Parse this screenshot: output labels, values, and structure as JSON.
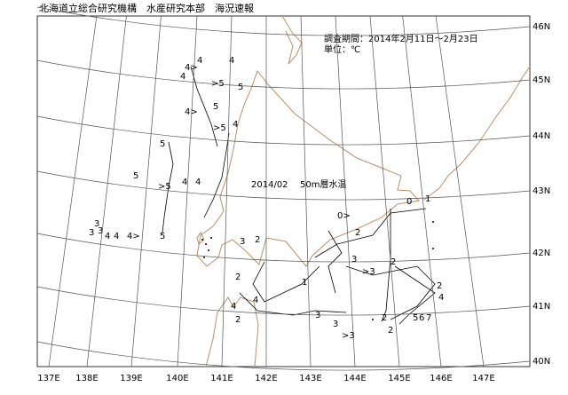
{
  "header": {
    "title": "北海道立総合研究機構　水産研究本部　海況速報",
    "period": "調査期間：2014年2月11日～2月23日",
    "unit": "単位：℃"
  },
  "map_label": {
    "date": "2014/02",
    "layer": "50m層水温"
  },
  "lon_labels": [
    "137E",
    "138E",
    "139E",
    "140E",
    "141E",
    "142E",
    "143E",
    "144E",
    "145E",
    "146E",
    "147E"
  ],
  "lat_labels": [
    "46N",
    "45N",
    "44N",
    "43N",
    "42N",
    "41N",
    "40N"
  ],
  "contour_labels": [
    "4>",
    "4",
    "4",
    "4",
    ">5",
    "5",
    "4>",
    "5",
    ">5",
    "4",
    "5",
    "5",
    ">5",
    "4",
    "4",
    "3",
    "3",
    "3",
    "4",
    "4",
    "4>",
    "5",
    "3",
    "2",
    "0",
    "0>",
    "1",
    "2",
    "3",
    ">3",
    "2",
    "2",
    "1",
    "3",
    "3",
    "2",
    "4",
    "2",
    "4",
    "2",
    "4",
    "5",
    "6",
    "7",
    ">3",
    "2"
  ]
}
